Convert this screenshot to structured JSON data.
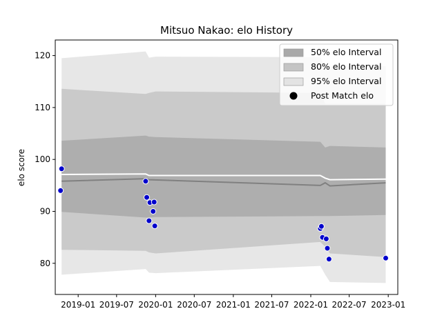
{
  "chart_data": {
    "type": "area",
    "title": "Mitsuo Nakao: elo History",
    "xlabel": "",
    "ylabel": "elo score",
    "xlim": [
      "2018-09-15",
      "2023-02-15"
    ],
    "ylim": [
      74,
      123
    ],
    "x_ticks": [
      "2019-01",
      "2019-07",
      "2020-01",
      "2020-07",
      "2021-01",
      "2021-07",
      "2022-01",
      "2022-07",
      "2023-01"
    ],
    "y_ticks": [
      80,
      90,
      100,
      110,
      120
    ],
    "grid": false,
    "legend_position": "top-right",
    "colors": {
      "band50": "#a9a9a9",
      "band80": "#c4c4c4",
      "band95": "#e3e3e3",
      "line_dark": "#808080",
      "line_white": "#ffffff",
      "points": "#0000cc",
      "point_edge": "#ffffff"
    },
    "legend": [
      {
        "label": "50% elo Interval",
        "kind": "band50"
      },
      {
        "label": "80% elo Interval",
        "kind": "band80"
      },
      {
        "label": "95% elo Interval",
        "kind": "band95"
      },
      {
        "label": "Post Match elo",
        "kind": "marker"
      }
    ],
    "band_x": [
      "2018-10-15",
      "2019-11-15",
      "2019-12-01",
      "2020-01-01",
      "2022-02-15",
      "2022-03-10",
      "2022-04-01",
      "2022-12-20"
    ],
    "intervals": {
      "band95": {
        "upper": [
          119.5,
          120.8,
          119.6,
          119.8,
          119.7,
          117.8,
          117.9,
          118.0
        ],
        "lower": [
          77.8,
          78.9,
          78.2,
          78.1,
          79.5,
          77.8,
          76.4,
          76.2
        ]
      },
      "band80": {
        "upper": [
          113.6,
          112.6,
          112.8,
          113.1,
          112.8,
          110.7,
          110.7,
          110.7
        ],
        "lower": [
          82.6,
          82.4,
          82.1,
          81.9,
          84.1,
          83.2,
          81.9,
          81.2
        ]
      },
      "band50": {
        "upper": [
          103.6,
          104.6,
          104.4,
          104.3,
          103.4,
          102.3,
          102.6,
          102.3
        ],
        "lower": [
          89.9,
          88.8,
          88.8,
          88.9,
          89.1,
          89.1,
          89.1,
          89.3
        ]
      }
    },
    "series": [
      {
        "kind": "line_dark",
        "x": [
          "2018-10-15",
          "2019-11-15",
          "2019-12-01",
          "2022-02-15",
          "2022-03-10",
          "2022-04-01",
          "2022-12-20"
        ],
        "values": [
          95.8,
          96.3,
          96.1,
          95.0,
          95.5,
          94.9,
          95.5
        ]
      },
      {
        "kind": "line_white",
        "x": [
          "2018-10-15",
          "2019-11-15",
          "2019-12-01",
          "2022-02-15",
          "2022-03-10",
          "2022-04-01",
          "2022-12-20"
        ],
        "values": [
          97.1,
          97.2,
          96.9,
          96.9,
          96.4,
          96.1,
          96.2
        ]
      }
    ],
    "points": {
      "x": [
        "2018-10-10",
        "2018-10-15",
        "2019-11-15",
        "2019-11-20",
        "2019-12-01",
        "2019-12-05",
        "2019-12-20",
        "2019-12-28",
        "2019-12-25",
        "2022-02-15",
        "2022-02-20",
        "2022-02-25",
        "2022-03-15",
        "2022-03-20",
        "2022-03-28",
        "2022-12-20"
      ],
      "y": [
        94.0,
        98.2,
        95.8,
        92.7,
        88.2,
        91.7,
        90.0,
        87.2,
        91.8,
        86.7,
        87.1,
        85.0,
        84.7,
        82.9,
        80.8,
        81.0
      ]
    }
  }
}
